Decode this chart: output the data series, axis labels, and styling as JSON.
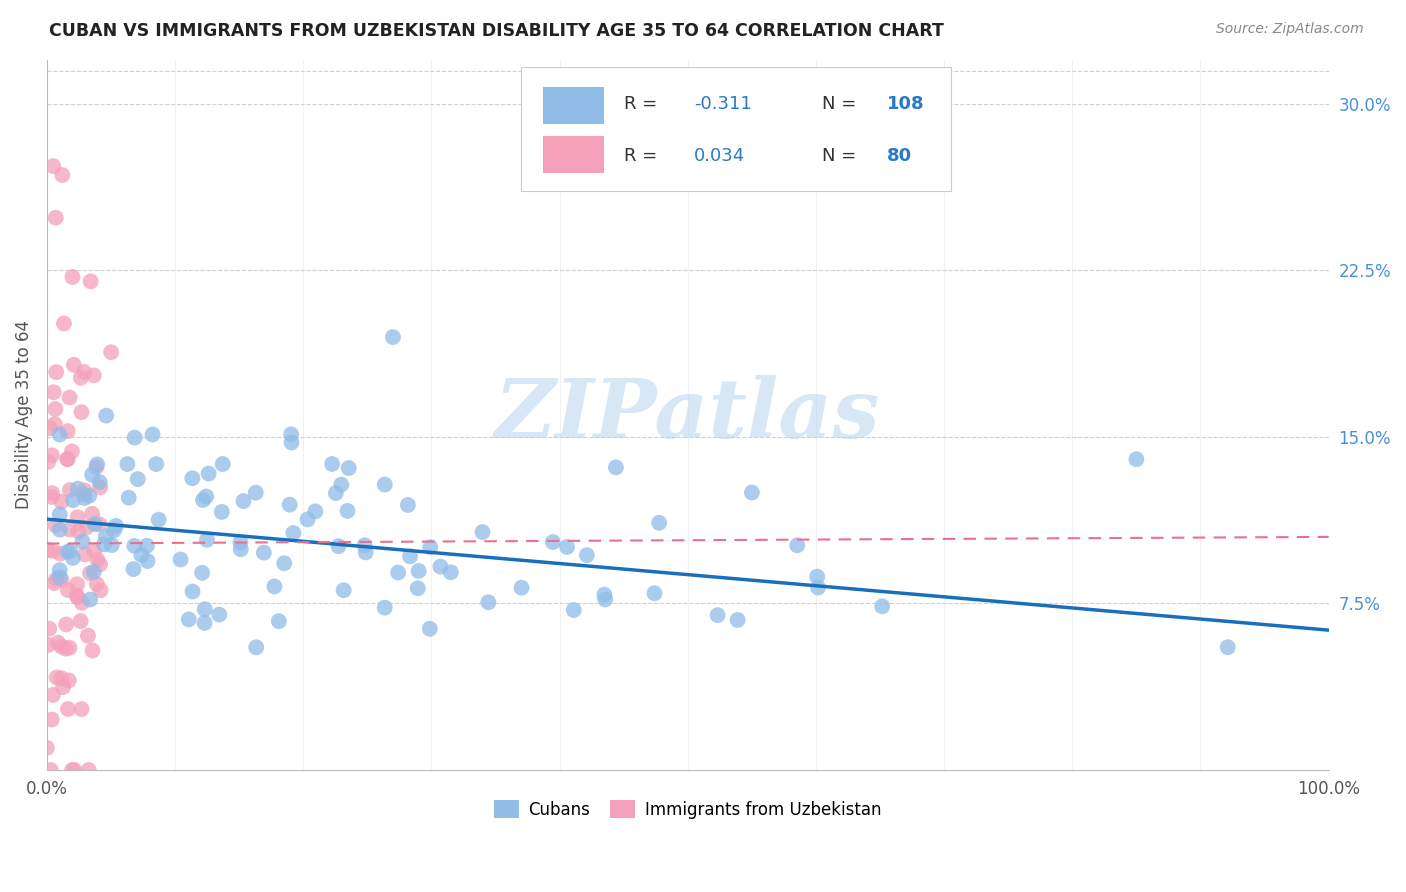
{
  "title": "CUBAN VS IMMIGRANTS FROM UZBEKISTAN DISABILITY AGE 35 TO 64 CORRELATION CHART",
  "source": "Source: ZipAtlas.com",
  "ylabel": "Disability Age 35 to 64",
  "xlim": [
    0.0,
    1.0
  ],
  "ylim": [
    0.0,
    0.32
  ],
  "xtick_positions": [
    0.0,
    0.25,
    0.5,
    0.75,
    1.0
  ],
  "xticklabels": [
    "0.0%",
    "",
    "",
    "",
    "100.0%"
  ],
  "yticks_right": [
    0.075,
    0.15,
    0.225,
    0.3
  ],
  "yticklabels_right": [
    "7.5%",
    "15.0%",
    "22.5%",
    "30.0%"
  ],
  "cubans_color": "#90bce8",
  "uzbekistan_color": "#f4a0b8",
  "trendline_cuban_color": "#1a6fbd",
  "trendline_uzbek_color": "#e87090",
  "background_color": "#ffffff",
  "grid_color": "#d0d0d0",
  "watermark": "ZIPatlas",
  "R_cuban": -0.311,
  "N_cuban": 108,
  "R_uzbek": 0.034,
  "N_uzbek": 80,
  "legend_text_color": "#333333",
  "legend_value_color": "#2979c5",
  "right_axis_color": "#4a90d9",
  "title_color": "#222222",
  "source_color": "#888888",
  "cuban_trend_start_y": 0.113,
  "cuban_trend_end_y": 0.063,
  "uzbek_trend_start_y": 0.102,
  "uzbek_trend_end_y": 0.105
}
